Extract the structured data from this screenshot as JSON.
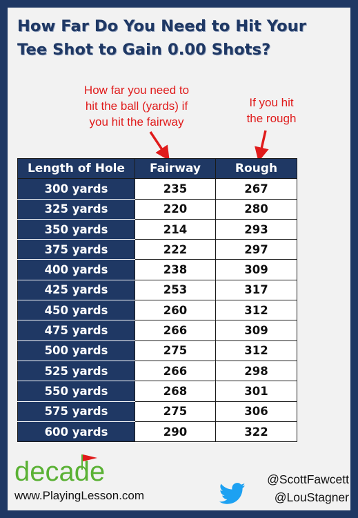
{
  "title": {
    "line1": "How Far Do You Need to Hit Your",
    "line2": "Tee Shot to Gain 0.00 Shots?"
  },
  "annotations": {
    "fairway_note": [
      "How far you need to",
      "hit the ball (yards) if",
      "you hit the fairway"
    ],
    "rough_note": [
      "If you hit",
      "the rough"
    ]
  },
  "chart_data": {
    "type": "table",
    "columns": [
      "Length of Hole",
      "Fairway",
      "Rough"
    ],
    "rows": [
      [
        "300 yards",
        "235",
        "267"
      ],
      [
        "325 yards",
        "220",
        "280"
      ],
      [
        "350 yards",
        "214",
        "293"
      ],
      [
        "375 yards",
        "222",
        "297"
      ],
      [
        "400 yards",
        "238",
        "309"
      ],
      [
        "425 yards",
        "253",
        "317"
      ],
      [
        "450 yards",
        "260",
        "312"
      ],
      [
        "475 yards",
        "266",
        "309"
      ],
      [
        "500 yards",
        "275",
        "312"
      ],
      [
        "525 yards",
        "266",
        "298"
      ],
      [
        "550 yards",
        "268",
        "301"
      ],
      [
        "575 yards",
        "275",
        "306"
      ],
      [
        "600 yards",
        "290",
        "322"
      ]
    ]
  },
  "footer": {
    "logo_text": "decade",
    "website": "www.PlayingLesson.com",
    "handles": [
      "@ScottFawcett",
      "@LouStagner"
    ]
  },
  "icons": {
    "logo_flag": "golf-flag-icon",
    "twitter": "twitter-bird-icon"
  },
  "colors": {
    "navy": "#1f3864",
    "accent_red": "#e01b1b",
    "logo_green": "#5ab134",
    "twitter_blue": "#1da1f2"
  }
}
